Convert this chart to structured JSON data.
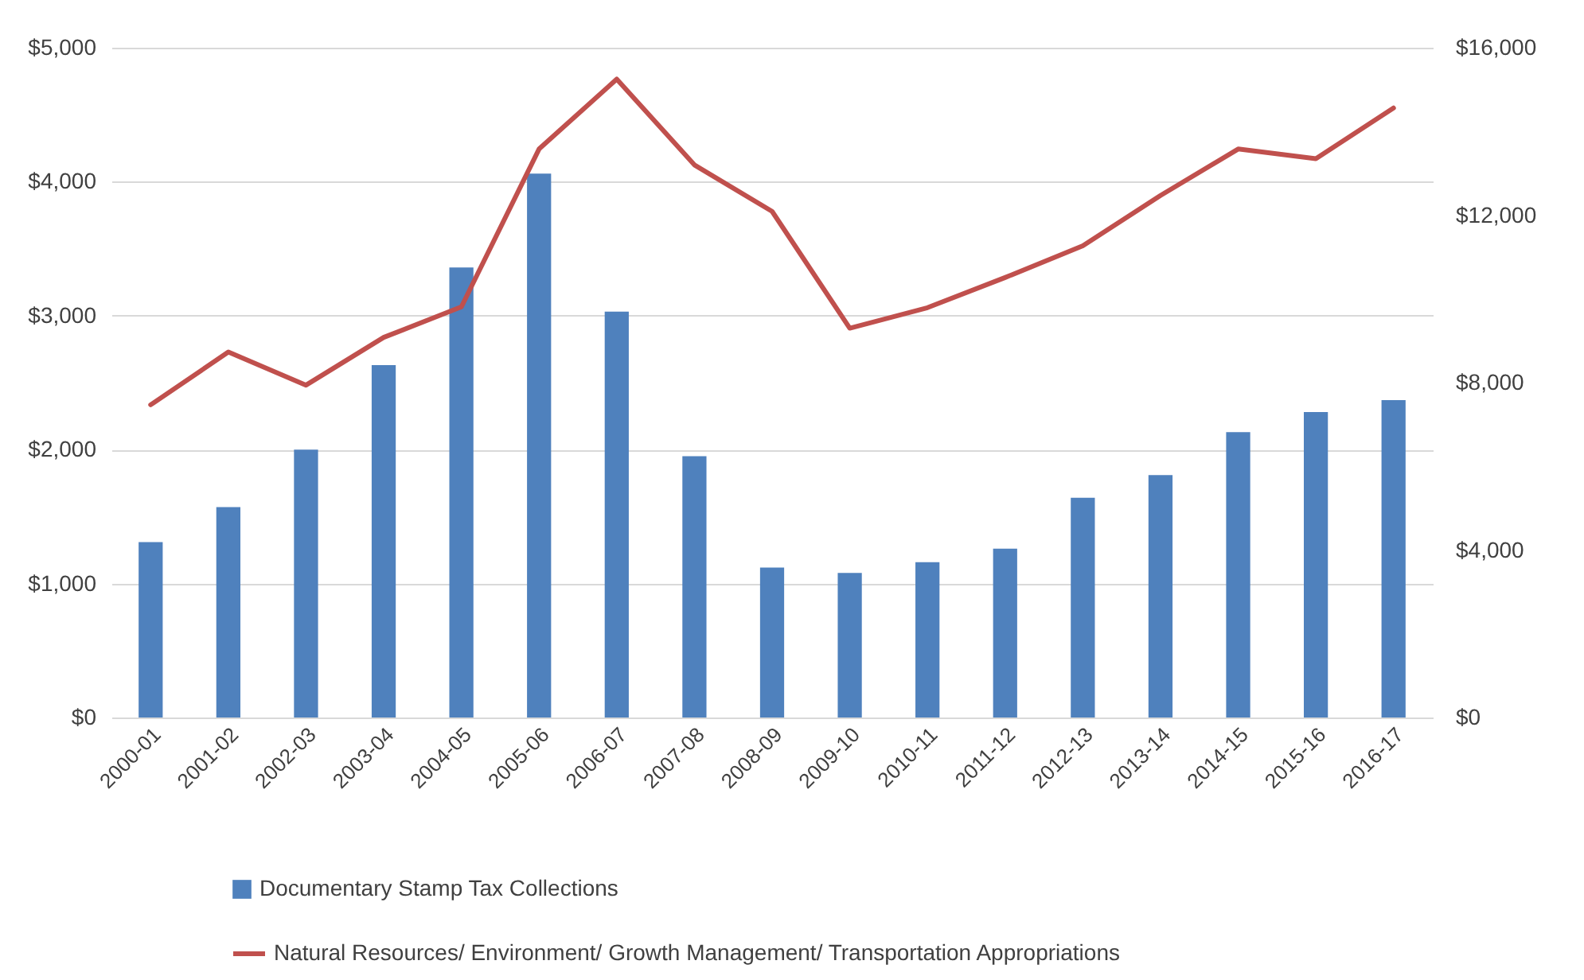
{
  "chart_data": {
    "type": "bar",
    "categories": [
      "2000-01",
      "2001-02",
      "2002-03",
      "2003-04",
      "2004-05",
      "2005-06",
      "2006-07",
      "2007-08",
      "2008-09",
      "2009-10",
      "2010-11",
      "2011-12",
      "2012-13",
      "2013-14",
      "2014-15",
      "2015-16",
      "2016-17"
    ],
    "series": [
      {
        "name": "Documentary Stamp Tax Collections",
        "color": "#4f81bd",
        "values": [
          1310,
          1570,
          2000,
          2630,
          3360,
          4060,
          3030,
          1950,
          1120,
          1080,
          1160,
          1260,
          1640,
          1810,
          2130,
          2280,
          2370
        ]
      },
      {
        "name": "Natural Resources/ Environment/ Growth Management/ Transportation Appropriations",
        "type": "line",
        "axis": "y2",
        "color": "#c0504d",
        "values": [
          7470,
          8730,
          7940,
          9080,
          9810,
          13580,
          15250,
          13200,
          12090,
          9300,
          9790,
          10510,
          11270,
          12470,
          13580,
          13350,
          14560
        ]
      }
    ],
    "ylim": [
      0,
      5000
    ],
    "yticks": [
      {
        "value": 0,
        "label": "$0"
      },
      {
        "value": 1000,
        "label": "$1,000"
      },
      {
        "value": 2000,
        "label": "$2,000"
      },
      {
        "value": 3000,
        "label": "$3,000"
      },
      {
        "value": 4000,
        "label": "$4,000"
      },
      {
        "value": 5000,
        "label": "$5,000"
      }
    ],
    "y2lim": [
      0,
      16000
    ],
    "y2ticks": [
      {
        "value": 0,
        "label": "$0"
      },
      {
        "value": 4000,
        "label": "$4,000"
      },
      {
        "value": 8000,
        "label": "$8,000"
      },
      {
        "value": 12000,
        "label": "$12,000"
      },
      {
        "value": 16000,
        "label": "$16,000"
      }
    ],
    "grid": "y",
    "legend": "bottom"
  }
}
